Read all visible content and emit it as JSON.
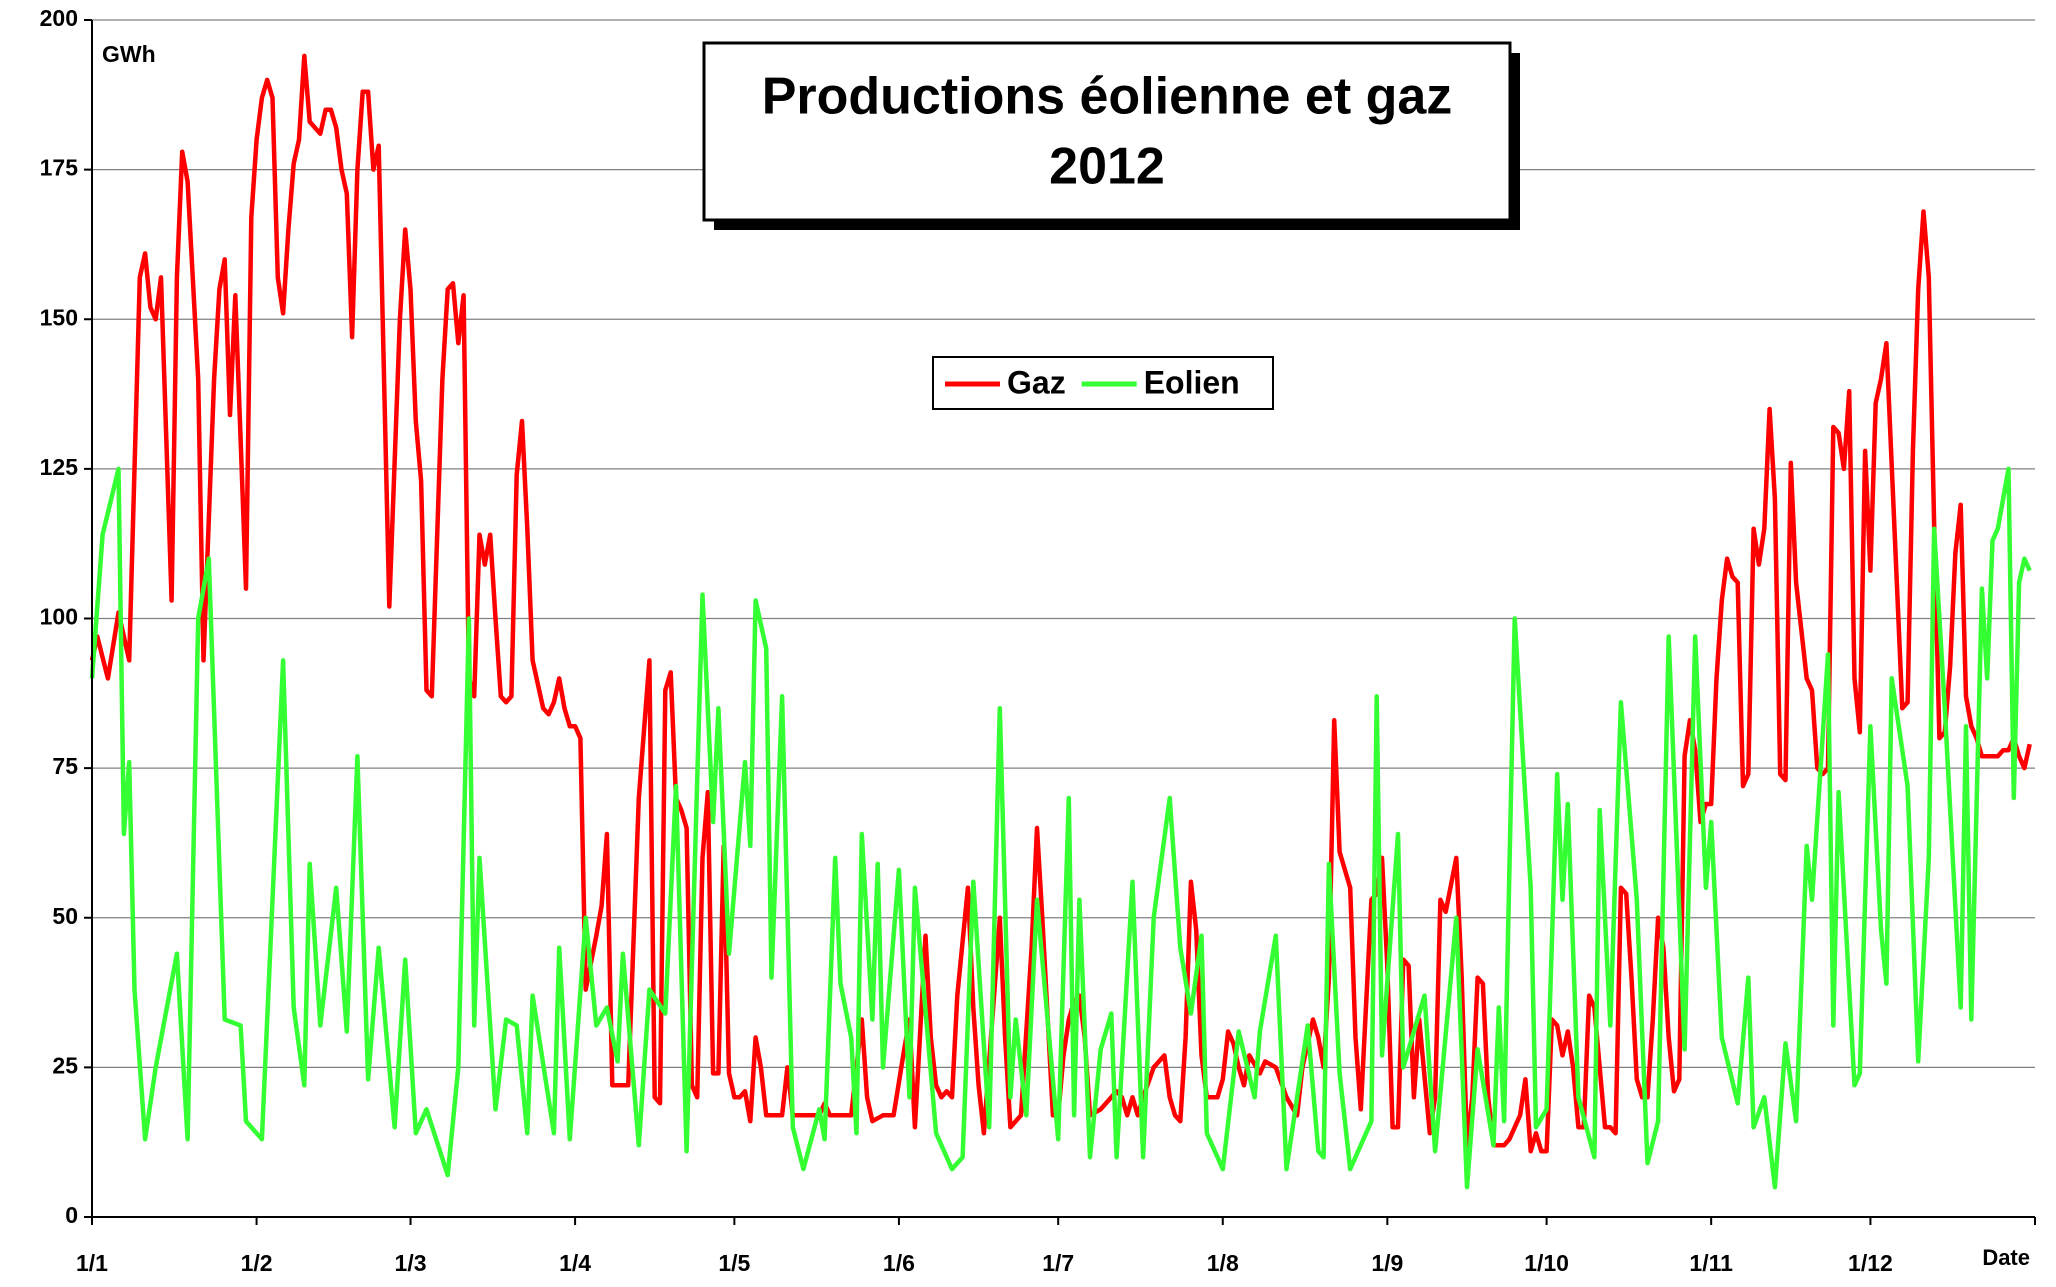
{
  "chart_data": {
    "type": "line",
    "title": "Productions éolienne et gaz",
    "subtitle": "2012",
    "y_label": "GWh",
    "x_label": "Date",
    "xlim": [
      1,
      367
    ],
    "ylim": [
      0,
      200
    ],
    "yticks": [
      0,
      25,
      50,
      75,
      100,
      125,
      150,
      175,
      200
    ],
    "xticks": [
      {
        "value": 1,
        "label": "1/1"
      },
      {
        "value": 32,
        "label": "1/2"
      },
      {
        "value": 61,
        "label": "1/3"
      },
      {
        "value": 92,
        "label": "1/4"
      },
      {
        "value": 122,
        "label": "1/5"
      },
      {
        "value": 153,
        "label": "1/6"
      },
      {
        "value": 183,
        "label": "1/7"
      },
      {
        "value": 214,
        "label": "1/8"
      },
      {
        "value": 245,
        "label": "1/9"
      },
      {
        "value": 275,
        "label": "1/10"
      },
      {
        "value": 306,
        "label": "1/11"
      },
      {
        "value": 336,
        "label": "1/12"
      },
      {
        "value": 367,
        "label": ""
      }
    ],
    "grid": true,
    "series": [
      {
        "name": "Gaz",
        "color": "#ff0000",
        "x": [
          1,
          2,
          4,
          6,
          8,
          10,
          11,
          12,
          13,
          14,
          16,
          17,
          18,
          19,
          21,
          22,
          24,
          25,
          26,
          27,
          28,
          29,
          30,
          31,
          32,
          33,
          34,
          35,
          36,
          37,
          38,
          39,
          40,
          41,
          42,
          44,
          45,
          46,
          47,
          48,
          49,
          50,
          51,
          52,
          53,
          54,
          55,
          57,
          59,
          60,
          61,
          62,
          63,
          64,
          65,
          67,
          68,
          69,
          70,
          71,
          72,
          73,
          74,
          75,
          76,
          77,
          78,
          79,
          80,
          81,
          82,
          83,
          84,
          86,
          87,
          88,
          89,
          90,
          91,
          92,
          93,
          94,
          96,
          97,
          98,
          99,
          100,
          101,
          102,
          104,
          106,
          107,
          108,
          109,
          110,
          111,
          112,
          113,
          114,
          115,
          116,
          117,
          118,
          119,
          120,
          121,
          122,
          123,
          124,
          125,
          126,
          127,
          128,
          131,
          132,
          133,
          135,
          138,
          139,
          140,
          144,
          146,
          147,
          148,
          150,
          152,
          154,
          155,
          156,
          158,
          159,
          160,
          161,
          162,
          163,
          164,
          166,
          167,
          168,
          169,
          171,
          172,
          173,
          174,
          176,
          178,
          179,
          180,
          182,
          183,
          184,
          185,
          186,
          187,
          188,
          189,
          191,
          193,
          194,
          195,
          196,
          197,
          198,
          199,
          201,
          203,
          204,
          205,
          206,
          207,
          208,
          209,
          210,
          211,
          213,
          214,
          215,
          216,
          217,
          218,
          219,
          221,
          222,
          224,
          226,
          228,
          229,
          231,
          232,
          233,
          234,
          235,
          236,
          238,
          239,
          240,
          242,
          243,
          244,
          245,
          246,
          247,
          248,
          249,
          250,
          251,
          253,
          254,
          255,
          256,
          258,
          259,
          260,
          261,
          262,
          263,
          264,
          265,
          267,
          268,
          270,
          271,
          272,
          273,
          274,
          275,
          276,
          277,
          278,
          279,
          280,
          281,
          282,
          283,
          284,
          285,
          286,
          287,
          288,
          289,
          290,
          291,
          292,
          293,
          294,
          295,
          296,
          297,
          298,
          299,
          300,
          301,
          302,
          303,
          304,
          305,
          306,
          307,
          308,
          309,
          310,
          311,
          312,
          313,
          314,
          315,
          316,
          317,
          318,
          319,
          320,
          321,
          322,
          323,
          324,
          325,
          326,
          327,
          328,
          329,
          330,
          331,
          332,
          333,
          334,
          335,
          336,
          337,
          338,
          339,
          342,
          343,
          344,
          345,
          346,
          347,
          348,
          349,
          350,
          351,
          352,
          353,
          354,
          355,
          356,
          357,
          358,
          359,
          360,
          361,
          362,
          363,
          364,
          365,
          366
        ],
        "values": [
          93,
          97,
          90,
          101,
          93,
          157,
          161,
          152,
          150,
          157,
          103,
          157,
          178,
          173,
          140,
          93,
          140,
          155,
          160,
          134,
          154,
          130,
          105,
          167,
          180,
          187,
          190,
          187,
          157,
          151,
          165,
          176,
          180,
          194,
          183,
          181,
          185,
          185,
          182,
          175,
          171,
          147,
          175,
          188,
          188,
          175,
          179,
          102,
          150,
          165,
          155,
          133,
          123,
          88,
          87,
          140,
          155,
          156,
          146,
          154,
          90,
          87,
          114,
          109,
          114,
          100,
          87,
          86,
          87,
          124,
          133,
          115,
          93,
          85,
          84,
          86,
          90,
          85,
          82,
          82,
          80,
          38,
          47,
          52,
          64,
          22,
          22,
          22,
          22,
          70,
          93,
          20,
          19,
          88,
          91,
          70,
          68,
          65,
          22,
          20,
          60,
          71,
          24,
          24,
          62,
          24,
          20,
          20,
          21,
          16,
          30,
          25,
          17,
          17,
          25,
          17,
          17,
          17,
          19,
          17,
          17,
          33,
          20,
          16,
          17,
          17,
          28,
          33,
          15,
          47,
          30,
          22,
          20,
          21,
          20,
          37,
          55,
          35,
          22,
          14,
          38,
          50,
          30,
          15,
          17,
          45,
          65,
          50,
          17,
          17,
          27,
          33,
          36,
          37,
          30,
          17,
          18,
          20,
          21,
          20,
          17,
          20,
          17,
          20,
          25,
          27,
          20,
          17,
          16,
          30,
          56,
          48,
          27,
          20,
          20,
          23,
          31,
          29,
          25,
          22,
          27,
          24,
          26,
          25,
          20,
          17,
          25,
          33,
          30,
          25,
          40,
          83,
          61,
          55,
          30,
          18,
          53,
          54,
          60,
          42,
          15,
          15,
          43,
          42,
          20,
          33,
          14,
          20,
          53,
          51,
          60,
          40,
          12,
          20,
          40,
          39,
          20,
          12,
          12,
          13,
          17,
          23,
          11,
          14,
          11,
          11,
          33,
          32,
          27,
          31,
          25,
          15,
          15,
          37,
          35,
          25,
          15,
          15,
          14,
          55,
          54,
          40,
          23,
          20,
          20,
          33,
          50,
          45,
          30,
          21,
          23,
          77,
          83,
          78,
          66,
          69,
          69,
          90,
          103,
          110,
          107,
          106,
          72,
          74,
          115,
          109,
          115,
          135,
          120,
          74,
          73,
          126,
          106,
          98,
          90,
          88,
          75,
          74,
          75,
          132,
          131,
          125,
          138,
          90,
          81,
          128,
          108,
          136,
          140,
          146,
          85,
          86,
          128,
          155,
          168,
          157,
          116,
          80,
          81,
          92,
          111,
          119,
          87,
          82,
          80,
          77,
          77,
          77,
          77,
          78,
          78,
          80,
          77,
          75,
          79
        ]
      },
      {
        "name": "Eolien",
        "color": "#33ff33",
        "x": [
          1,
          3,
          6,
          7,
          8,
          9,
          11,
          13,
          17,
          19,
          21,
          23,
          26,
          29,
          30,
          33,
          37,
          39,
          41,
          42,
          44,
          47,
          49,
          51,
          53,
          55,
          58,
          60,
          62,
          64,
          68,
          70,
          72,
          73,
          74,
          77,
          79,
          81,
          83,
          84,
          88,
          89,
          91,
          94,
          96,
          98,
          100,
          101,
          104,
          106,
          109,
          111,
          113,
          116,
          118,
          119,
          121,
          124,
          125,
          126,
          128,
          129,
          131,
          133,
          135,
          138,
          139,
          141,
          142,
          144,
          145,
          146,
          148,
          149,
          150,
          153,
          155,
          156,
          160,
          163,
          165,
          167,
          170,
          172,
          174,
          175,
          177,
          179,
          183,
          185,
          186,
          187,
          189,
          191,
          193,
          194,
          197,
          199,
          201,
          204,
          206,
          208,
          210,
          211,
          214,
          217,
          220,
          221,
          224,
          226,
          230,
          232,
          233,
          234,
          236,
          238,
          242,
          243,
          244,
          247,
          248,
          252,
          254,
          258,
          260,
          262,
          265,
          266,
          267,
          269,
          272,
          273,
          275,
          277,
          278,
          279,
          281,
          284,
          285,
          287,
          289,
          292,
          294,
          296,
          298,
          301,
          303,
          305,
          306,
          308,
          311,
          313,
          314,
          316,
          318,
          320,
          322,
          324,
          325,
          328,
          329,
          330,
          333,
          334,
          336,
          338,
          339,
          340,
          343,
          345,
          347,
          348,
          350,
          353,
          354,
          355,
          357,
          358,
          359,
          360,
          362,
          363,
          364,
          365,
          366
        ],
        "values": [
          90,
          114,
          125,
          64,
          76,
          38,
          13,
          25,
          44,
          13,
          100,
          110,
          33,
          32,
          16,
          13,
          93,
          35,
          22,
          59,
          32,
          55,
          31,
          77,
          23,
          45,
          15,
          43,
          14,
          18,
          7,
          25,
          100,
          32,
          60,
          18,
          33,
          32,
          14,
          37,
          14,
          45,
          13,
          50,
          32,
          35,
          26,
          44,
          12,
          38,
          34,
          72,
          11,
          104,
          66,
          85,
          44,
          76,
          62,
          103,
          95,
          40,
          87,
          15,
          8,
          18,
          13,
          60,
          39,
          30,
          14,
          64,
          33,
          59,
          25,
          58,
          20,
          55,
          14,
          8,
          10,
          56,
          15,
          85,
          20,
          33,
          17,
          53,
          13,
          70,
          17,
          53,
          10,
          28,
          34,
          10,
          56,
          10,
          50,
          70,
          45,
          34,
          47,
          14,
          8,
          31,
          20,
          31,
          47,
          8,
          32,
          11,
          10,
          59,
          24,
          8,
          16,
          87,
          27,
          64,
          25,
          37,
          11,
          50,
          5,
          28,
          12,
          35,
          16,
          100,
          55,
          15,
          18,
          74,
          53,
          69,
          20,
          10,
          68,
          32,
          86,
          53,
          9,
          16,
          97,
          28,
          97,
          55,
          66,
          30,
          19,
          40,
          15,
          20,
          5,
          29,
          16,
          62,
          53,
          94,
          32,
          71,
          22,
          24,
          82,
          48,
          39,
          90,
          72,
          26,
          60,
          115,
          85,
          35,
          82,
          33,
          105,
          90,
          113,
          115,
          125,
          70,
          106,
          110,
          108
        ]
      }
    ]
  }
}
